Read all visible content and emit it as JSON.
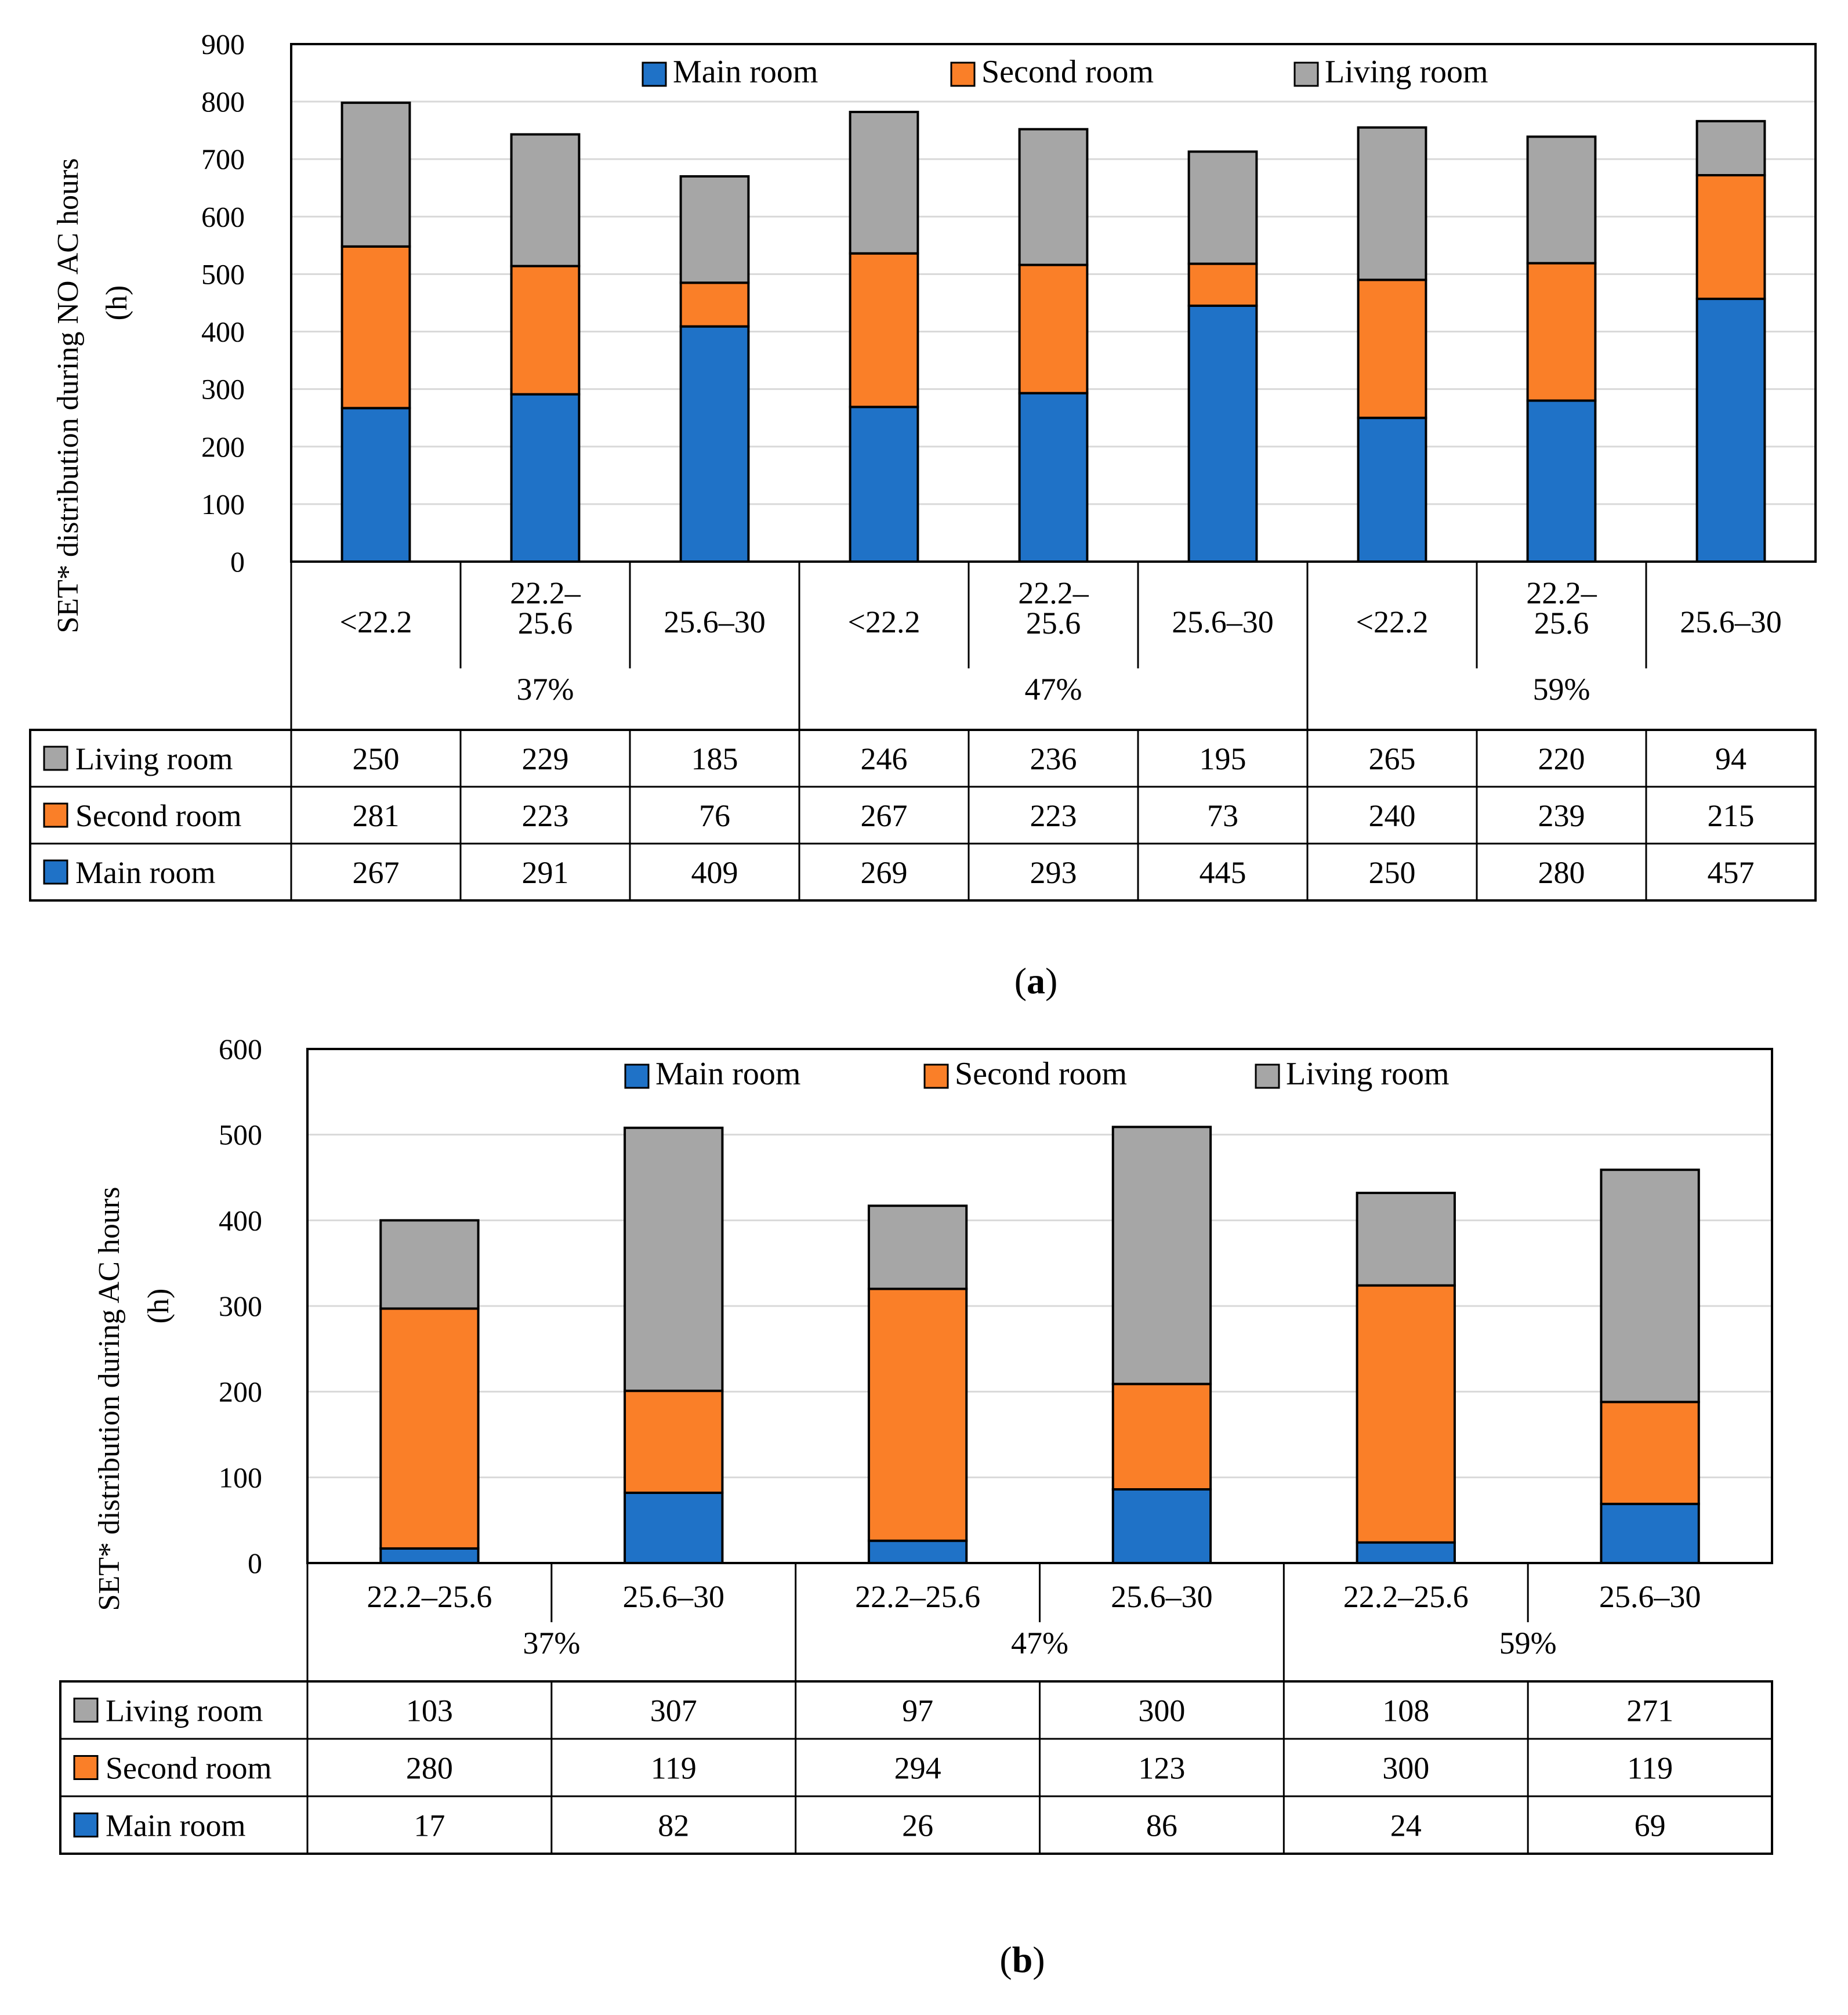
{
  "colors": {
    "main_room": "#1F72C7",
    "second_room": "#FA7F28",
    "living_room": "#A6A6A6",
    "gridline": "#D9D9D9",
    "border": "#000000"
  },
  "chart_data": [
    {
      "id": "a",
      "caption_label": "a",
      "type": "bar",
      "stacked": true,
      "title": "",
      "ylabel_line1": "SET* distribution during NO AC hours",
      "ylabel_line2": "(h)",
      "ylim": [
        0,
        900
      ],
      "ytick_step": 100,
      "ticks": [
        "0",
        "100",
        "200",
        "300",
        "400",
        "500",
        "600",
        "700",
        "800",
        "900"
      ],
      "grid": true,
      "legend": {
        "placement": "top-center",
        "entries": [
          "Main room",
          "Second room",
          "Living room"
        ]
      },
      "categories": [
        [
          "<22.2"
        ],
        [
          "22.2–",
          "25.6"
        ],
        [
          "25.6–30"
        ],
        [
          "<22.2"
        ],
        [
          "22.2–",
          "25.6"
        ],
        [
          "25.6–30"
        ],
        [
          "<22.2"
        ],
        [
          "22.2–",
          "25.6"
        ],
        [
          "25.6–30"
        ]
      ],
      "groups": [
        "37%",
        "47%",
        "59%"
      ],
      "group_size": 3,
      "series": [
        {
          "name": "Living room",
          "key": "living_room",
          "values": [
            250,
            229,
            185,
            246,
            236,
            195,
            265,
            220,
            94
          ]
        },
        {
          "name": "Second room",
          "key": "second_room",
          "values": [
            281,
            223,
            76,
            267,
            223,
            73,
            240,
            239,
            215
          ]
        },
        {
          "name": "Main room",
          "key": "main_room",
          "values": [
            267,
            291,
            409,
            269,
            293,
            445,
            250,
            280,
            457
          ]
        }
      ]
    },
    {
      "id": "b",
      "caption_label": "b",
      "type": "bar",
      "stacked": true,
      "title": "",
      "ylabel_line1": "SET* distribution during  AC hours",
      "ylabel_line2": "(h)",
      "ylim": [
        0,
        600
      ],
      "ytick_step": 100,
      "ticks": [
        "0",
        "100",
        "200",
        "300",
        "400",
        "500",
        "600"
      ],
      "grid": true,
      "legend": {
        "placement": "top-center",
        "entries": [
          "Main room",
          "Second room",
          "Living room"
        ]
      },
      "categories": [
        [
          "22.2–25.6"
        ],
        [
          "25.6–30"
        ],
        [
          "22.2–25.6"
        ],
        [
          "25.6–30"
        ],
        [
          "22.2–25.6"
        ],
        [
          "25.6–30"
        ]
      ],
      "groups": [
        "37%",
        "47%",
        "59%"
      ],
      "group_size": 2,
      "series": [
        {
          "name": "Living room",
          "key": "living_room",
          "values": [
            103,
            307,
            97,
            300,
            108,
            271
          ]
        },
        {
          "name": "Second room",
          "key": "second_room",
          "values": [
            280,
            119,
            294,
            123,
            300,
            119
          ]
        },
        {
          "name": "Main room",
          "key": "main_room",
          "values": [
            17,
            82,
            26,
            86,
            24,
            69
          ]
        }
      ]
    }
  ]
}
